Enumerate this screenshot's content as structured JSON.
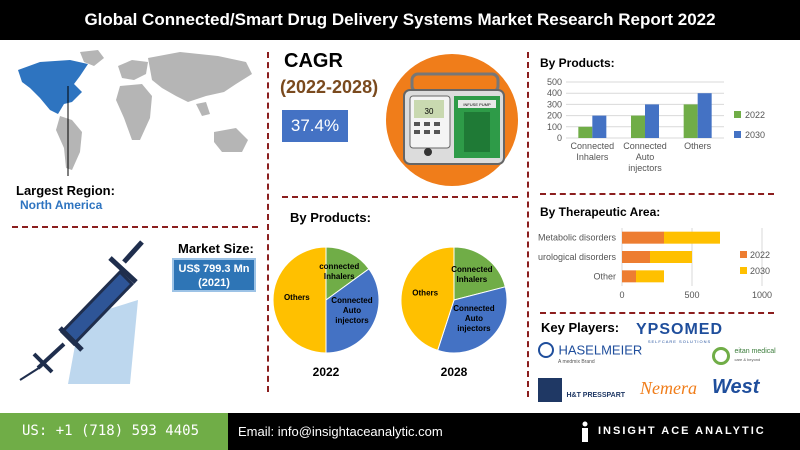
{
  "header": {
    "title": "Global Connected/Smart Drug Delivery Systems Market Research Report 2022"
  },
  "region": {
    "label": "Largest Region:",
    "value": "North America"
  },
  "cagr": {
    "title": "CAGR",
    "years": "(2022-2028)",
    "value": "37.4%"
  },
  "market": {
    "title": "Market Size:",
    "line1": "US$ 799.3 Mn",
    "line2": "(2021)"
  },
  "pump": {
    "label": "INFUSE PUMP",
    "screen": "30"
  },
  "pies": {
    "title": "By Products:",
    "slice_labels": {
      "connected_inhalers": "connected Inhalers",
      "connected_inhalers_2028": "Connected Inhalers",
      "auto": "Connected Auto injectors",
      "others": "Others"
    }
  },
  "products_chart": {
    "title": "By Products:"
  },
  "therapeutic_chart": {
    "title": "By Therapeutic Area:"
  },
  "players": {
    "title": "Key Players:",
    "logos": [
      "YPSOMED",
      "SELFCARE SOLUTIONS",
      "HASELMEIER",
      "A medmix Brand",
      "eitan medical",
      "care & beyond",
      "H&T PRESSPART",
      "Nemera",
      "West"
    ]
  },
  "footer": {
    "phone": "US: +1 (718) 593 4405",
    "email": "Email: info@insightaceanalytic.com",
    "brand": "INSIGHT ACE ANALYTIC"
  },
  "colors": {
    "accent_blue": "#4472c4",
    "orange": "#ed7d31",
    "gold": "#ffc000",
    "green": "#70ad47"
  },
  "chart_data": [
    {
      "type": "bar",
      "title": "By Products:",
      "categories": [
        "Connected Inhalers",
        "Connected Auto injectors",
        "Others"
      ],
      "series": [
        {
          "name": "2022",
          "values": [
            100,
            200,
            300
          ]
        },
        {
          "name": "2030",
          "values": [
            200,
            300,
            400
          ]
        }
      ],
      "ylim": [
        0,
        500
      ],
      "yticks": [
        0,
        100,
        200,
        300,
        400,
        500
      ],
      "legend": "right"
    },
    {
      "type": "bar",
      "orientation": "horizontal",
      "stacked": true,
      "title": "By Therapeutic Area:",
      "categories": [
        "Metabolic disorders",
        "Neurological disorders",
        "Other"
      ],
      "series": [
        {
          "name": "2022",
          "values": [
            300,
            200,
            100
          ]
        },
        {
          "name": "2030",
          "values": [
            400,
            300,
            200
          ]
        }
      ],
      "xlim": [
        0,
        1000
      ],
      "xticks": [
        0,
        500,
        1000
      ],
      "legend": "right"
    },
    {
      "type": "pie",
      "year": "2022",
      "slices": [
        {
          "label": "connected Inhalers",
          "value": 15
        },
        {
          "label": "Connected Auto injectors",
          "value": 35
        },
        {
          "label": "Others",
          "value": 50
        }
      ]
    },
    {
      "type": "pie",
      "year": "2028",
      "slices": [
        {
          "label": "Connected Inhalers",
          "value": 21
        },
        {
          "label": "Connected Auto injectors",
          "value": 34
        },
        {
          "label": "Others",
          "value": 45
        }
      ]
    }
  ]
}
